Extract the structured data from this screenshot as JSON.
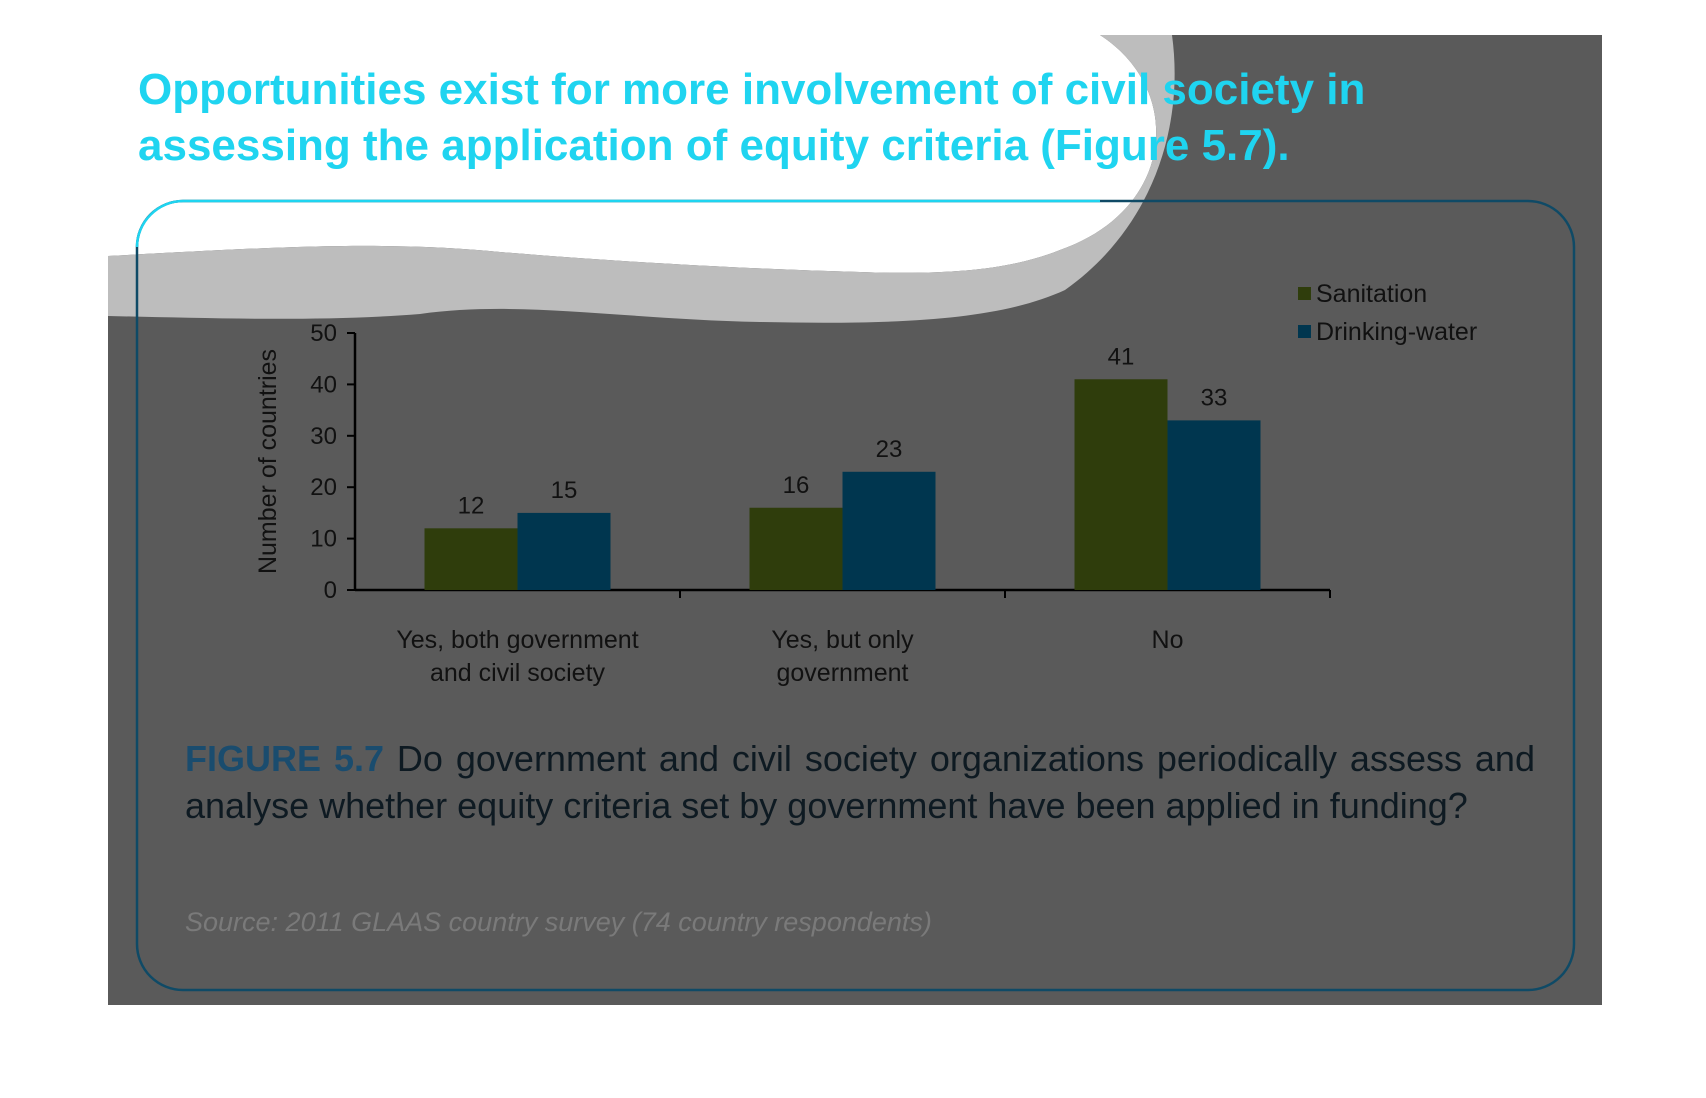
{
  "headline": "Opportunities exist for more involvement of civil society in assessing the application of equity criteria (Figure 5.7).",
  "colors": {
    "headline": "#1fd4f0",
    "panel_background": "#5a5a5a",
    "panel_border": "#0f4a66",
    "wave_band": "#bdbdbd",
    "sanitation": "#2f3d0c",
    "drinking_water": "#00364f",
    "figure_label": "#1a4c6e",
    "source_text": "#7a7a7a"
  },
  "caption": {
    "label": "FIGURE 5.7",
    "text": "Do government and civil society organizations periodically assess and analyse whether equity criteria set by government have been applied in funding?"
  },
  "source": "Source: 2011 GLAAS country survey (74 country respondents)",
  "chart_data": {
    "type": "bar",
    "categories": [
      [
        "Yes, both government",
        "and civil society"
      ],
      [
        "Yes, but only",
        "government"
      ],
      [
        "No"
      ]
    ],
    "series": [
      {
        "name": "Sanitation",
        "color": "#2f3d0c",
        "values": [
          12,
          16,
          41
        ]
      },
      {
        "name": "Drinking-water",
        "color": "#00364f",
        "values": [
          15,
          23,
          33
        ]
      }
    ],
    "ylabel": "Number of countries",
    "xlabel": "",
    "ylim": [
      0,
      50
    ],
    "yticks": [
      0,
      10,
      20,
      30,
      40,
      50
    ],
    "data_labels": true,
    "grid": false,
    "legend_position": "top-right"
  }
}
